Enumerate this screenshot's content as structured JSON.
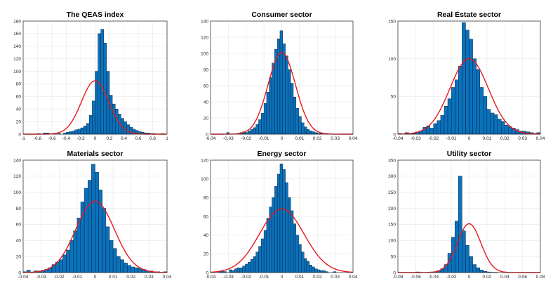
{
  "chart_data": [
    {
      "type": "histogram",
      "title": "The QEAS index",
      "xlim": [
        -1,
        1
      ],
      "ylim": [
        0,
        180
      ],
      "xticks": [
        "-1",
        "-0.8",
        "-0.6",
        "-0.4",
        "-0.2",
        "0",
        "0.2",
        "0.4",
        "0.6",
        "0.8",
        "1"
      ],
      "yticks": [
        "0",
        "20",
        "40",
        "60",
        "80",
        "100",
        "120",
        "140",
        "160",
        "180"
      ],
      "bins": {
        "start": -1,
        "width": 0.04
      },
      "counts": [
        0,
        0,
        0,
        0,
        0,
        1,
        0,
        2,
        2,
        0,
        1,
        0,
        1,
        0,
        2,
        3,
        4,
        5,
        7,
        8,
        10,
        13,
        17,
        30,
        53,
        100,
        160,
        167,
        145,
        100,
        62,
        48,
        40,
        32,
        25,
        20,
        15,
        11,
        8,
        6,
        4,
        3,
        2,
        2,
        1,
        1,
        0,
        0,
        1,
        0
      ],
      "normal_fit": {
        "mu": 0,
        "sigma": 0.19,
        "peak": 85
      }
    },
    {
      "type": "histogram",
      "title": "Consumer sector",
      "xlim": [
        -0.04,
        0.04
      ],
      "ylim": [
        0,
        140
      ],
      "xticks": [
        "-0.04",
        "-0.03",
        "-0.02",
        "-0.01",
        "0",
        "0.01",
        "0.02",
        "0.03",
        "0.04"
      ],
      "yticks": [
        "0",
        "20",
        "40",
        "60",
        "80",
        "100",
        "120",
        "140"
      ],
      "bins": {
        "start": -0.04,
        "width": 0.0015
      },
      "counts": [
        0,
        0,
        0,
        0,
        0,
        0,
        2,
        0,
        0,
        0,
        1,
        2,
        3,
        2,
        4,
        6,
        8,
        12,
        18,
        26,
        38,
        52,
        70,
        88,
        105,
        118,
        128,
        112,
        97,
        80,
        63,
        46,
        32,
        22,
        14,
        9,
        6,
        4,
        3,
        2,
        1,
        1,
        0,
        1,
        0,
        0,
        0,
        0,
        0,
        0,
        0,
        0,
        0,
        0
      ],
      "normal_fit": {
        "mu": 0,
        "sigma": 0.0077,
        "peak": 101
      }
    },
    {
      "type": "histogram",
      "title": "Real Estate sector",
      "xlim": [
        -0.04,
        0.04
      ],
      "ylim": [
        0,
        150
      ],
      "xticks": [
        "-0.04",
        "-0.03",
        "-0.02",
        "-0.01",
        "0",
        "0.01",
        "0.02",
        "0.03",
        "0.04"
      ],
      "yticks": [
        "0",
        "50",
        "100",
        "150"
      ],
      "bins": {
        "start": -0.04,
        "width": 0.002
      },
      "counts": [
        1,
        0,
        2,
        1,
        1,
        3,
        4,
        9,
        11,
        8,
        14,
        18,
        25,
        37,
        47,
        62,
        72,
        90,
        148,
        138,
        126,
        100,
        86,
        62,
        50,
        33,
        28,
        26,
        20,
        17,
        12,
        10,
        8,
        6,
        4,
        4,
        3,
        2,
        1,
        2
      ],
      "normal_fit": {
        "mu": 0,
        "sigma": 0.0108,
        "peak": 100
      }
    },
    {
      "type": "histogram",
      "title": "Materials sector",
      "xlim": [
        -0.04,
        0.04
      ],
      "ylim": [
        0,
        140
      ],
      "xticks": [
        "-0.04",
        "-0.03",
        "-0.02",
        "-0.01",
        "0",
        "0.01",
        "0.02",
        "0.03",
        "0.04"
      ],
      "yticks": [
        "0",
        "20",
        "40",
        "60",
        "80",
        "100",
        "120",
        "140"
      ],
      "bins": {
        "start": -0.04,
        "width": 0.002
      },
      "counts": [
        1,
        3,
        0,
        2,
        2,
        3,
        4,
        6,
        10,
        13,
        16,
        22,
        28,
        40,
        52,
        68,
        88,
        105,
        115,
        135,
        125,
        103,
        80,
        57,
        40,
        30,
        20,
        16,
        12,
        9,
        7,
        6,
        5,
        4,
        2,
        2,
        1,
        1,
        0,
        1
      ],
      "normal_fit": {
        "mu": 0,
        "sigma": 0.0107,
        "peak": 89
      }
    },
    {
      "type": "histogram",
      "title": "Energy sector",
      "xlim": [
        -0.04,
        0.04
      ],
      "ylim": [
        0,
        120
      ],
      "xticks": [
        "-0.04",
        "-0.03",
        "-0.02",
        "-0.01",
        "0",
        "0.01",
        "0.02",
        "0.03",
        "0.04"
      ],
      "yticks": [
        "0",
        "20",
        "40",
        "60",
        "80",
        "100",
        "120"
      ],
      "bins": {
        "start": -0.04,
        "width": 0.0015
      },
      "counts": [
        0,
        0,
        0,
        1,
        2,
        1,
        0,
        3,
        2,
        4,
        5,
        5,
        7,
        9,
        11,
        14,
        17,
        22,
        28,
        36,
        45,
        58,
        70,
        80,
        92,
        105,
        116,
        110,
        96,
        80,
        66,
        52,
        40,
        30,
        22,
        15,
        12,
        8,
        6,
        4,
        3,
        2,
        2,
        1,
        0,
        0,
        1,
        0,
        0,
        0,
        0,
        0,
        0,
        0
      ],
      "normal_fit": {
        "mu": 0,
        "sigma": 0.0125,
        "peak": 68
      }
    },
    {
      "type": "histogram",
      "title": "Utility sector",
      "xlim": [
        -0.08,
        0.08
      ],
      "ylim": [
        0,
        350
      ],
      "xticks": [
        "-0.08",
        "-0.06",
        "-0.04",
        "-0.02",
        "0",
        "0.02",
        "0.04",
        "0.06",
        "0.08"
      ],
      "yticks": [
        "0",
        "50",
        "100",
        "150",
        "200",
        "250",
        "300",
        "350"
      ],
      "bins": {
        "start": -0.08,
        "width": 0.004
      },
      "counts": [
        0,
        0,
        0,
        0,
        0,
        2,
        0,
        0,
        1,
        2,
        3,
        6,
        12,
        25,
        60,
        110,
        160,
        300,
        130,
        85,
        50,
        25,
        15,
        8,
        4,
        2,
        1,
        1,
        0,
        0,
        0,
        0,
        0,
        0,
        0,
        0,
        0,
        0,
        0,
        0
      ],
      "normal_fit": {
        "mu": 0,
        "sigma": 0.0132,
        "peak": 152
      }
    }
  ],
  "colors": {
    "bar_fill": "#0a72bd",
    "bar_edge": "#0b1b2e",
    "fit_line": "#e8181d",
    "grid": "#e6e6e6",
    "axis": "#262626"
  }
}
